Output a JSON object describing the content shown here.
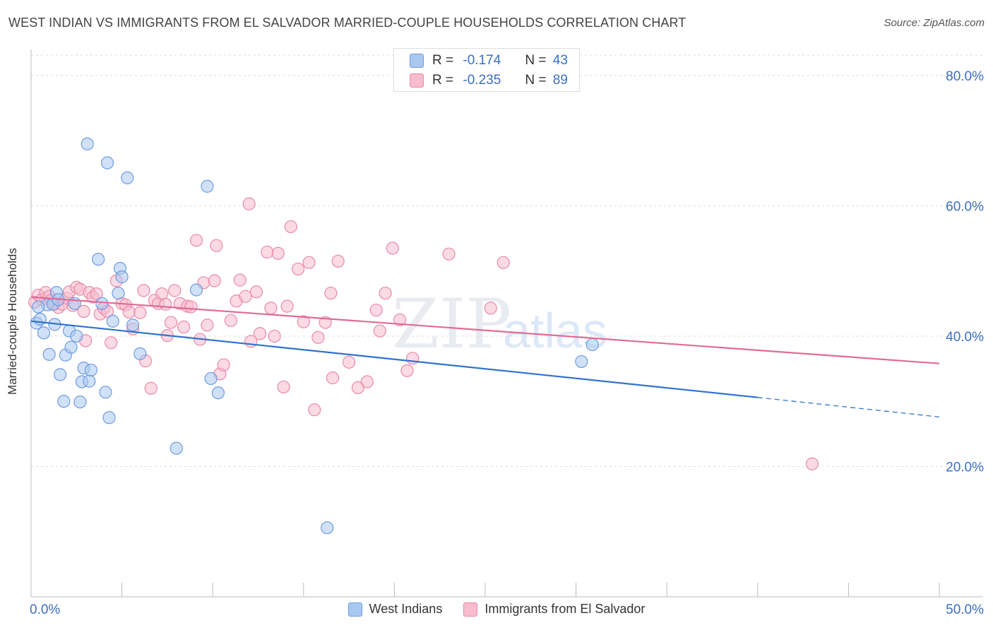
{
  "title": "WEST INDIAN VS IMMIGRANTS FROM EL SALVADOR MARRIED-COUPLE HOUSEHOLDS CORRELATION CHART",
  "source": "Source: ZipAtlas.com",
  "watermark": {
    "zip": "ZIP",
    "atlas": "atlas"
  },
  "stats": [
    {
      "r_label": "R =",
      "r_value": "-0.174",
      "n_label": "N =",
      "n_value": "43",
      "color": "#a9c8f0",
      "border": "#6d9be0"
    },
    {
      "r_label": "R =",
      "r_value": "-0.235",
      "n_label": "N =",
      "n_value": "89",
      "color": "#f7bccd",
      "border": "#e88aa6"
    }
  ],
  "chart_data": {
    "type": "scatter",
    "ylabel": "Married-couple Households",
    "xlim": [
      0,
      50
    ],
    "ylim": [
      0,
      84
    ],
    "x_tick_labels": [
      "0.0%",
      "50.0%"
    ],
    "y_ticks": [
      20,
      40,
      60,
      80
    ],
    "y_tick_labels": [
      "20.0%",
      "40.0%",
      "60.0%",
      "80.0%"
    ],
    "grid": true,
    "series": [
      {
        "name": "West Indians",
        "color": "#a9c8f0",
        "stroke": "#6d9be0",
        "line_color": "#2f72cf",
        "trend": {
          "x0": 0,
          "y0": 42.3,
          "x1": 40,
          "y1": 30.6,
          "dash_to_x": 50,
          "dash_to_y": 27.6
        },
        "points": [
          [
            0.3,
            42
          ],
          [
            0.5,
            42.6
          ],
          [
            0.7,
            40.5
          ],
          [
            0.9,
            44.8
          ],
          [
            1.0,
            37.2
          ],
          [
            1.2,
            44.9
          ],
          [
            1.3,
            41.8
          ],
          [
            1.4,
            46.7
          ],
          [
            1.6,
            34.1
          ],
          [
            1.8,
            30.0
          ],
          [
            1.9,
            37.1
          ],
          [
            2.1,
            40.8
          ],
          [
            2.2,
            38.3
          ],
          [
            2.4,
            45.0
          ],
          [
            2.5,
            40.0
          ],
          [
            2.7,
            29.9
          ],
          [
            2.8,
            33.0
          ],
          [
            2.9,
            35.1
          ],
          [
            3.1,
            69.5
          ],
          [
            3.2,
            33.1
          ],
          [
            3.3,
            34.8
          ],
          [
            3.7,
            51.8
          ],
          [
            3.9,
            45.0
          ],
          [
            4.1,
            31.4
          ],
          [
            4.2,
            66.6
          ],
          [
            4.3,
            27.5
          ],
          [
            4.5,
            42.3
          ],
          [
            4.8,
            46.6
          ],
          [
            4.9,
            50.4
          ],
          [
            5.0,
            49.1
          ],
          [
            5.3,
            64.3
          ],
          [
            5.6,
            41.7
          ],
          [
            6.0,
            37.3
          ],
          [
            8.0,
            22.8
          ],
          [
            9.1,
            47.1
          ],
          [
            9.7,
            63.0
          ],
          [
            9.9,
            33.5
          ],
          [
            10.3,
            31.3
          ],
          [
            16.3,
            10.6
          ],
          [
            30.3,
            36.1
          ],
          [
            30.9,
            38.7
          ],
          [
            0.4,
            44.5
          ],
          [
            1.5,
            45.6
          ]
        ]
      },
      {
        "name": "Immigrants from El Salvador",
        "color": "#f7bccd",
        "stroke": "#e88aa6",
        "line_color": "#e06b94",
        "trend": {
          "x0": 0,
          "y0": 46.0,
          "x1": 50,
          "y1": 35.8
        },
        "points": [
          [
            0.2,
            45.2
          ],
          [
            0.4,
            46.3
          ],
          [
            0.6,
            45.6
          ],
          [
            0.8,
            46.7
          ],
          [
            1.0,
            46.1
          ],
          [
            1.1,
            45.5
          ],
          [
            1.3,
            44.9
          ],
          [
            1.5,
            44.4
          ],
          [
            1.7,
            44.9
          ],
          [
            2.0,
            45.8
          ],
          [
            2.1,
            46.8
          ],
          [
            2.3,
            44.7
          ],
          [
            2.5,
            47.5
          ],
          [
            2.7,
            47.2
          ],
          [
            2.9,
            43.8
          ],
          [
            3.0,
            39.3
          ],
          [
            3.2,
            46.7
          ],
          [
            3.4,
            46.0
          ],
          [
            3.6,
            46.5
          ],
          [
            3.8,
            43.4
          ],
          [
            4.0,
            44.3
          ],
          [
            4.2,
            43.8
          ],
          [
            4.4,
            39.0
          ],
          [
            4.7,
            48.5
          ],
          [
            5.0,
            45.0
          ],
          [
            5.2,
            44.8
          ],
          [
            5.4,
            43.7
          ],
          [
            5.6,
            41.1
          ],
          [
            6.0,
            43.6
          ],
          [
            6.2,
            47.0
          ],
          [
            6.3,
            36.2
          ],
          [
            6.6,
            32.0
          ],
          [
            6.8,
            45.5
          ],
          [
            7.0,
            45.0
          ],
          [
            7.2,
            46.5
          ],
          [
            7.4,
            44.9
          ],
          [
            7.5,
            40.1
          ],
          [
            7.7,
            42.1
          ],
          [
            7.9,
            47.0
          ],
          [
            8.2,
            45.0
          ],
          [
            8.4,
            41.4
          ],
          [
            8.6,
            44.6
          ],
          [
            8.8,
            44.5
          ],
          [
            9.1,
            54.7
          ],
          [
            9.3,
            39.5
          ],
          [
            9.5,
            48.2
          ],
          [
            9.7,
            41.7
          ],
          [
            10.1,
            48.5
          ],
          [
            10.2,
            53.9
          ],
          [
            10.4,
            34.2
          ],
          [
            10.6,
            35.6
          ],
          [
            11.0,
            42.4
          ],
          [
            11.3,
            45.4
          ],
          [
            11.5,
            48.6
          ],
          [
            11.8,
            46.1
          ],
          [
            12.0,
            60.3
          ],
          [
            12.1,
            39.2
          ],
          [
            12.4,
            46.8
          ],
          [
            12.6,
            40.4
          ],
          [
            13.0,
            52.9
          ],
          [
            13.2,
            44.3
          ],
          [
            13.4,
            40.0
          ],
          [
            13.6,
            52.7
          ],
          [
            13.9,
            32.2
          ],
          [
            14.1,
            44.6
          ],
          [
            14.3,
            56.8
          ],
          [
            14.7,
            50.3
          ],
          [
            15.0,
            42.2
          ],
          [
            15.3,
            51.3
          ],
          [
            15.6,
            28.7
          ],
          [
            15.8,
            39.8
          ],
          [
            16.2,
            42.1
          ],
          [
            16.5,
            46.6
          ],
          [
            16.6,
            33.6
          ],
          [
            16.9,
            51.5
          ],
          [
            17.5,
            36.0
          ],
          [
            18.0,
            32.1
          ],
          [
            18.5,
            33.0
          ],
          [
            19.0,
            44.0
          ],
          [
            19.2,
            40.8
          ],
          [
            19.5,
            46.6
          ],
          [
            19.9,
            53.5
          ],
          [
            20.3,
            42.5
          ],
          [
            20.7,
            34.7
          ],
          [
            21.0,
            36.6
          ],
          [
            23.0,
            52.6
          ],
          [
            25.3,
            44.3
          ],
          [
            26.0,
            51.3
          ],
          [
            43.0,
            20.4
          ]
        ]
      }
    ]
  }
}
